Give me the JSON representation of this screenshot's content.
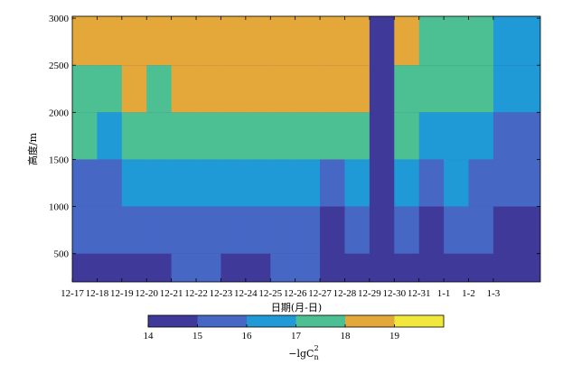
{
  "chart_data": {
    "type": "heatmap",
    "title": "",
    "xlabel": "日期(月-日)",
    "ylabel": "高度/m",
    "x_tick_labels": [
      "12-17",
      "12-18",
      "12-19",
      "12-20",
      "12-21",
      "12-22",
      "12-23",
      "12-24",
      "12-25",
      "12-26",
      "12-27",
      "12-28",
      "12-29",
      "12-30",
      "12-31",
      "1-1",
      "1-2",
      "1-3"
    ],
    "x_range": [
      "12-17",
      "1-4"
    ],
    "y_ticks": [
      500,
      1000,
      1500,
      2000,
      2500,
      3000
    ],
    "ylim": [
      200,
      3020
    ],
    "colorbar": {
      "label": "−lgC",
      "label_sub": "n",
      "label_sup": "2",
      "tick_labels": [
        "14",
        "15",
        "16",
        "17",
        "18",
        "19"
      ],
      "range": [
        14,
        20
      ],
      "placement": "bottom",
      "colors": [
        "#3f3a9a",
        "#4767c5",
        "#1f9ad6",
        "#4cc092",
        "#e3a73a",
        "#f2e83c"
      ]
    },
    "heights": [
      200,
      500,
      1000,
      1500,
      2000,
      2500,
      3020
    ],
    "values": [
      [
        15.2,
        14.6,
        15.4,
        16.4,
        17.6,
        18.2,
        18.6
      ],
      [
        14.8,
        14.6,
        15.4,
        16.2,
        17.4,
        18.0,
        18.4
      ],
      [
        15.0,
        14.8,
        15.6,
        16.8,
        17.8,
        18.4,
        18.8
      ],
      [
        15.0,
        14.7,
        15.4,
        16.6,
        17.6,
        18.2,
        18.6
      ],
      [
        15.2,
        14.8,
        15.6,
        17.0,
        17.8,
        18.4,
        18.6
      ],
      [
        15.3,
        15.0,
        15.8,
        17.2,
        18.2,
        18.6,
        18.8
      ],
      [
        15.0,
        14.6,
        15.4,
        16.6,
        17.8,
        18.4,
        18.8
      ],
      [
        15.0,
        14.8,
        15.6,
        17.0,
        18.0,
        18.6,
        18.8
      ],
      [
        15.2,
        15.0,
        15.8,
        17.2,
        18.4,
        18.8,
        18.6
      ],
      [
        15.2,
        15.0,
        15.6,
        17.0,
        18.2,
        18.6,
        18.6
      ],
      [
        14.8,
        14.6,
        15.2,
        16.6,
        18.0,
        18.4,
        18.6
      ],
      [
        14.8,
        14.6,
        15.4,
        16.8,
        17.8,
        18.2,
        18.4
      ],
      [
        14.0,
        14.0,
        14.0,
        14.0,
        14.0,
        14.0,
        14.0
      ],
      [
        15.0,
        14.8,
        15.6,
        16.8,
        17.6,
        18.0,
        18.2
      ],
      [
        15.0,
        14.6,
        15.2,
        16.2,
        17.2,
        17.6,
        17.8
      ],
      [
        15.0,
        14.8,
        15.6,
        16.4,
        17.2,
        17.6,
        18.0
      ],
      [
        15.0,
        14.8,
        15.4,
        16.2,
        17.0,
        17.4,
        17.6
      ],
      [
        14.8,
        14.6,
        15.0,
        15.6,
        16.2,
        16.8,
        17.0
      ]
    ]
  }
}
